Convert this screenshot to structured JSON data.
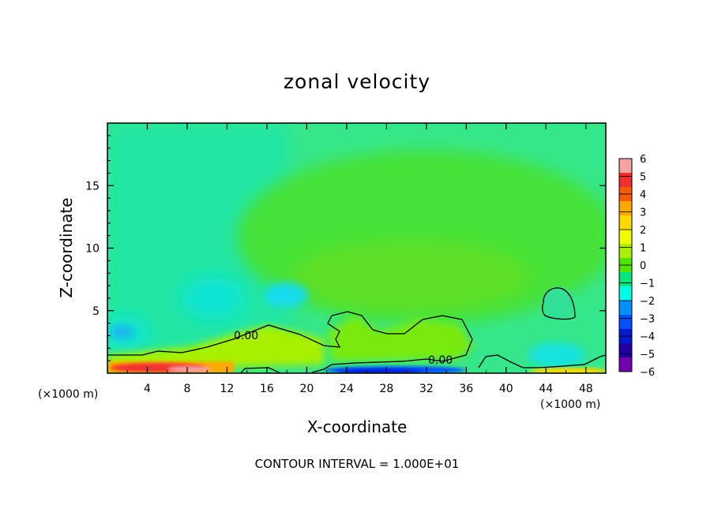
{
  "chart_data": {
    "type": "heatmap",
    "title": "zonal velocity",
    "xlabel": "X-coordinate",
    "ylabel": "Z-coordinate",
    "x_unit_label": "(×1000 m)",
    "xlim": [
      0,
      50
    ],
    "ylim": [
      0,
      20
    ],
    "x_ticks": [
      4,
      8,
      12,
      16,
      20,
      24,
      28,
      32,
      36,
      40,
      44,
      48
    ],
    "x_tick_labels": [
      "4",
      "8",
      "12",
      "16",
      "20",
      "24",
      "28",
      "32",
      "36",
      "40",
      "44",
      "48"
    ],
    "y_ticks": [
      5,
      10,
      15
    ],
    "y_tick_labels": [
      "5",
      "10",
      "15"
    ],
    "colorbar": {
      "ticks": [
        6,
        5,
        4,
        3,
        2,
        1,
        0,
        -1,
        -2,
        -3,
        -4,
        -5,
        -6
      ],
      "labels": [
        "6",
        "5",
        "4",
        "3",
        "2",
        "1",
        "0",
        "−1",
        "−2",
        "−3",
        "−4",
        "−5",
        "−6"
      ],
      "colors": [
        "#f7a3a3",
        "#f03030",
        "#fa5a00",
        "#ffa800",
        "#ffd800",
        "#f0ff00",
        "#a8f000",
        "#50e600",
        "#00e678",
        "#00ffe6",
        "#0090ff",
        "#0050ff",
        "#0018d0",
        "#2000a0",
        "#7000b0"
      ]
    },
    "contour_level": 0.0,
    "contour_labels": [
      "0.00",
      "0.00"
    ],
    "features": [
      {
        "description": "strong positive jet near surface",
        "x_range": [
          0,
          12
        ],
        "z_range": [
          0,
          1
        ],
        "value": 6
      },
      {
        "description": "negative flow near surface",
        "x_range": [
          22,
          36
        ],
        "z_range": [
          0,
          0.5
        ],
        "value": -5
      },
      {
        "description": "negative pocket",
        "x_range": [
          1,
          4
        ],
        "z_range": [
          2.5,
          4.5
        ],
        "value": -3
      },
      {
        "description": "negative pocket",
        "x_range": [
          16,
          20
        ],
        "z_range": [
          5.5,
          7
        ],
        "value": -2
      },
      {
        "description": "negative vortex",
        "x_range": [
          43,
          47
        ],
        "z_range": [
          4.5,
          7
        ],
        "value": -1
      },
      {
        "description": "weak positive upper region",
        "x_range": [
          20,
          50
        ],
        "z_range": [
          7,
          17
        ],
        "value": 0.5
      }
    ]
  },
  "contour_interval_text": "CONTOUR INTERVAL = 1.000E+01"
}
